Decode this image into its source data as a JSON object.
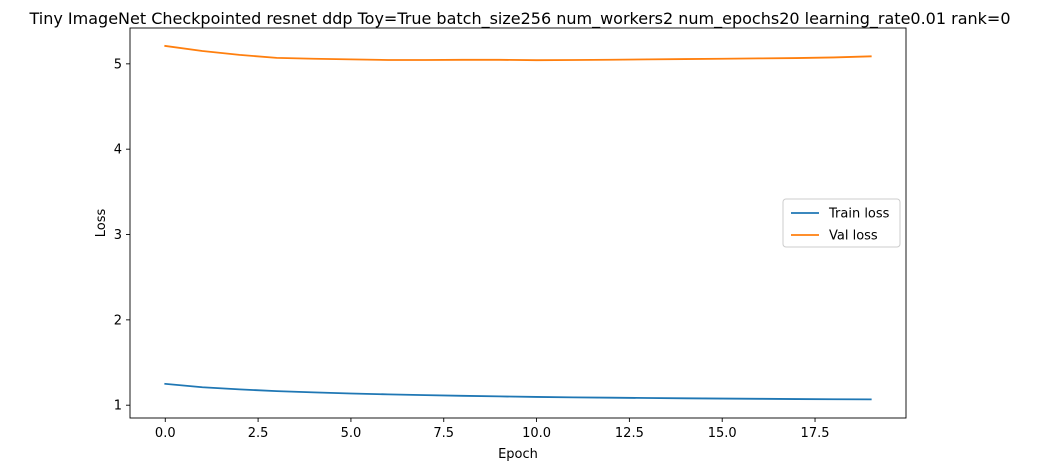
{
  "chart_data": {
    "type": "line",
    "title": "Tiny ImageNet Checkpointed resnet ddp Toy=True batch_size256 num_workers2 num_epochs20 learning_rate0.01 rank=0",
    "xlabel": "Epoch",
    "ylabel": "Loss",
    "xlim": [
      -0.95,
      19.95
    ],
    "ylim": [
      0.85,
      5.42
    ],
    "xticks": [
      0.0,
      2.5,
      5.0,
      7.5,
      10.0,
      12.5,
      15.0,
      17.5
    ],
    "xtick_labels": [
      "0.0",
      "2.5",
      "5.0",
      "7.5",
      "10.0",
      "12.5",
      "15.0",
      "17.5"
    ],
    "yticks": [
      1,
      2,
      3,
      4,
      5
    ],
    "ytick_labels": [
      "1",
      "2",
      "3",
      "4",
      "5"
    ],
    "grid": false,
    "legend_position": "center-right",
    "x": [
      0,
      1,
      2,
      3,
      4,
      5,
      6,
      7,
      8,
      9,
      10,
      11,
      12,
      13,
      14,
      15,
      16,
      17,
      18,
      19
    ],
    "series": [
      {
        "name": "Train loss",
        "color": "#1f77b4",
        "values": [
          1.25,
          1.21,
          1.185,
          1.165,
          1.15,
          1.137,
          1.127,
          1.118,
          1.11,
          1.103,
          1.097,
          1.092,
          1.088,
          1.084,
          1.081,
          1.078,
          1.075,
          1.072,
          1.07,
          1.068
        ]
      },
      {
        "name": "Val loss",
        "color": "#ff7f0e",
        "values": [
          5.21,
          5.15,
          5.105,
          5.07,
          5.06,
          5.052,
          5.045,
          5.045,
          5.047,
          5.047,
          5.043,
          5.045,
          5.048,
          5.052,
          5.056,
          5.06,
          5.064,
          5.068,
          5.075,
          5.088
        ]
      }
    ]
  }
}
